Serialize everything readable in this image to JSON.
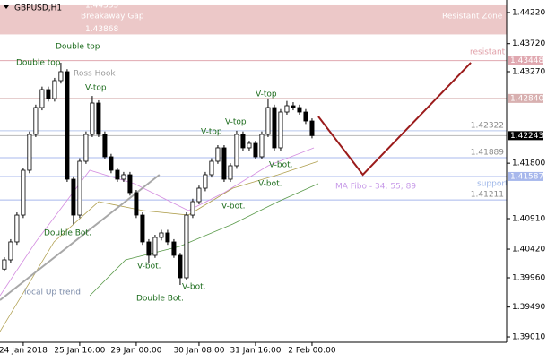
{
  "chart_data": {
    "type": "candlestick",
    "title": "GBPUSD,H1",
    "up_color": "#ffffff",
    "down_color": "#000000",
    "open": [
      1.401,
      1.40248,
      1.40536,
      1.40967,
      1.41687,
      1.42263,
      1.42694,
      1.42982,
      1.42838,
      1.43126,
      1.4327,
      1.41543,
      1.40967,
      1.41831,
      1.42263,
      1.42766,
      1.42263,
      1.41903,
      1.41687,
      1.41543,
      1.41615,
      1.41327,
      1.40967,
      1.40536,
      1.4032,
      1.40608,
      1.4068,
      1.40536,
      1.4032,
      1.3996,
      1.40967,
      1.41183,
      1.41399,
      1.41615,
      1.41831,
      1.42047,
      1.41543,
      1.41759,
      1.42263,
      1.42047,
      1.42119,
      1.41903,
      1.42263,
      1.42694,
      1.42047,
      1.42622,
      1.42723,
      1.42694,
      1.42622,
      1.42478
    ],
    "high": [
      1.4029,
      1.4058,
      1.4101,
      1.4173,
      1.4231,
      1.4274,
      1.4303,
      1.4303,
      1.4317,
      1.43414,
      1.4331,
      1.4159,
      1.4188,
      1.4231,
      1.4288,
      1.4281,
      1.4231,
      1.4195,
      1.4173,
      1.4166,
      1.4166,
      1.4137,
      1.4101,
      1.4058,
      1.4065,
      1.4073,
      1.4073,
      1.4058,
      1.4036,
      1.4101,
      1.4123,
      1.4144,
      1.4166,
      1.4188,
      1.4209,
      1.4209,
      1.418,
      1.42322,
      1.4231,
      1.4216,
      1.4216,
      1.4231,
      1.4284,
      1.4274,
      1.4267,
      1.428,
      1.4278,
      1.4274,
      1.4267,
      1.4252
    ],
    "low": [
      1.4006,
      1.402,
      1.4049,
      1.4092,
      1.4164,
      1.4222,
      1.4265,
      1.4279,
      1.4279,
      1.4308,
      1.415,
      1.4082,
      1.4092,
      1.4179,
      1.4222,
      1.4222,
      1.4186,
      1.4164,
      1.415,
      1.415,
      1.4128,
      1.4092,
      1.4049,
      1.402,
      1.4028,
      1.4056,
      1.4049,
      1.4028,
      1.39845,
      1.3992,
      1.4092,
      1.4114,
      1.4135,
      1.4157,
      1.4179,
      1.415,
      1.415,
      1.4171,
      1.42,
      1.42,
      1.4186,
      1.4186,
      1.4222,
      1.42,
      1.42,
      1.4258,
      1.4265,
      1.4258,
      1.4243,
      1.422
    ],
    "close": [
      1.40248,
      1.40536,
      1.40967,
      1.41687,
      1.42263,
      1.42694,
      1.42982,
      1.42838,
      1.43126,
      1.4327,
      1.41543,
      1.40967,
      1.41831,
      1.42263,
      1.42766,
      1.42263,
      1.41903,
      1.41687,
      1.41543,
      1.41615,
      1.41327,
      1.40967,
      1.40536,
      1.4032,
      1.40608,
      1.4068,
      1.40536,
      1.4032,
      1.3996,
      1.40967,
      1.41183,
      1.41399,
      1.41615,
      1.41831,
      1.42047,
      1.41543,
      1.41759,
      1.42263,
      1.42047,
      1.42119,
      1.41903,
      1.42263,
      1.42694,
      1.42047,
      1.42622,
      1.42723,
      1.42694,
      1.42622,
      1.42478,
      1.42243
    ],
    "xlim": [
      -0.7,
      80
    ],
    "ylim": [
      1.38924,
      1.44421
    ],
    "xticks": [
      {
        "value": 3,
        "label": "24 Jan 2018"
      },
      {
        "value": 12,
        "label": "25 Jan 16:00"
      },
      {
        "value": 21,
        "label": "29 Jan 00:00"
      },
      {
        "value": 31,
        "label": "30 Jan 08:00"
      },
      {
        "value": 40,
        "label": "31 Jan 16:00"
      },
      {
        "value": 49,
        "label": "2 Feb 00:00"
      }
    ],
    "yticks": [
      {
        "value": 1.4422,
        "label": "1.44220"
      },
      {
        "value": 1.4372,
        "label": "1.43720"
      },
      {
        "value": 1.4327,
        "label": "1.43270"
      },
      {
        "value": 1.418,
        "label": "1.41800"
      },
      {
        "value": 1.4091,
        "label": "1.40910"
      },
      {
        "value": 1.4042,
        "label": "1.40420"
      },
      {
        "value": 1.3996,
        "label": "1.39960"
      },
      {
        "value": 1.3949,
        "label": "1.39490"
      },
      {
        "value": 1.3901,
        "label": "1.39010"
      }
    ],
    "ma_lines": [
      {
        "color": "#d48ee0",
        "x": [
          -0.7,
          5,
          13.6,
          20.7,
          29.3,
          35,
          42,
          49.3
        ],
        "values": [
          1.39672,
          1.40536,
          1.41687,
          1.41471,
          1.41039,
          1.41327,
          1.41759,
          1.42047
        ]
      },
      {
        "color": "#b0a050",
        "x": [
          -0.7,
          7.9,
          15,
          22.1,
          29.3,
          36.4,
          43.6,
          50
        ],
        "values": [
          1.39097,
          1.40536,
          1.41183,
          1.41039,
          1.40967,
          1.41399,
          1.41615,
          1.41831
        ]
      },
      {
        "color": "#5a9a4a",
        "x": [
          13.6,
          19.3,
          27.9,
          36.4,
          43.6,
          50
        ],
        "values": [
          1.39672,
          1.40248,
          1.40464,
          1.40824,
          1.41183,
          1.41471
        ]
      }
    ],
    "trend_lines": [
      {
        "color": "#a8a8a8",
        "x": [
          -0.7,
          24.7
        ],
        "values": [
          1.396,
          1.41615
        ]
      },
      {
        "color": "#9b1b1b",
        "x": [
          50,
          57.1,
          74.3
        ],
        "values": [
          1.4255,
          1.41615,
          1.43414
        ]
      }
    ],
    "zone": {
      "name": "Breakaway Gap",
      "high": 1.44335,
      "low": 1.43868,
      "color": "#ecc8c8"
    },
    "levels": [
      {
        "value": 1.43448,
        "label": "1.43448",
        "color": "#e0a8b0",
        "style": "box"
      },
      {
        "value": 1.4284,
        "label": "1.42840",
        "color": "#d8b0b0",
        "style": "box"
      },
      {
        "value": 1.42322,
        "label": "1.42322",
        "color": "#b8c8ec",
        "style": "text"
      },
      {
        "value": 1.42243,
        "label": "1.42243",
        "color": "#b8b8b8",
        "style": "current"
      },
      {
        "value": 1.41889,
        "label": "1.41889",
        "color": "#a8b8ec",
        "style": "text"
      },
      {
        "value": 1.41587,
        "label": "1.41587",
        "color": "#a8b8ec",
        "style": "box"
      },
      {
        "value": 1.41211,
        "label": "1.41211",
        "color": "#a8b8ec",
        "style": "text"
      }
    ],
    "annotations": [
      "Double top",
      "Double top",
      "Ross Hook",
      "V-top",
      "V-top",
      "V-top",
      "V-top",
      "V-bot.",
      "V-bot.",
      "V-bot.",
      "V-bot.",
      "V-bot.",
      "Double Bot.",
      "Double Bot.",
      "Resistant Zone",
      "resistant",
      "support",
      "MA Fibo - 34; 55; 89",
      "local  Up trend"
    ]
  }
}
